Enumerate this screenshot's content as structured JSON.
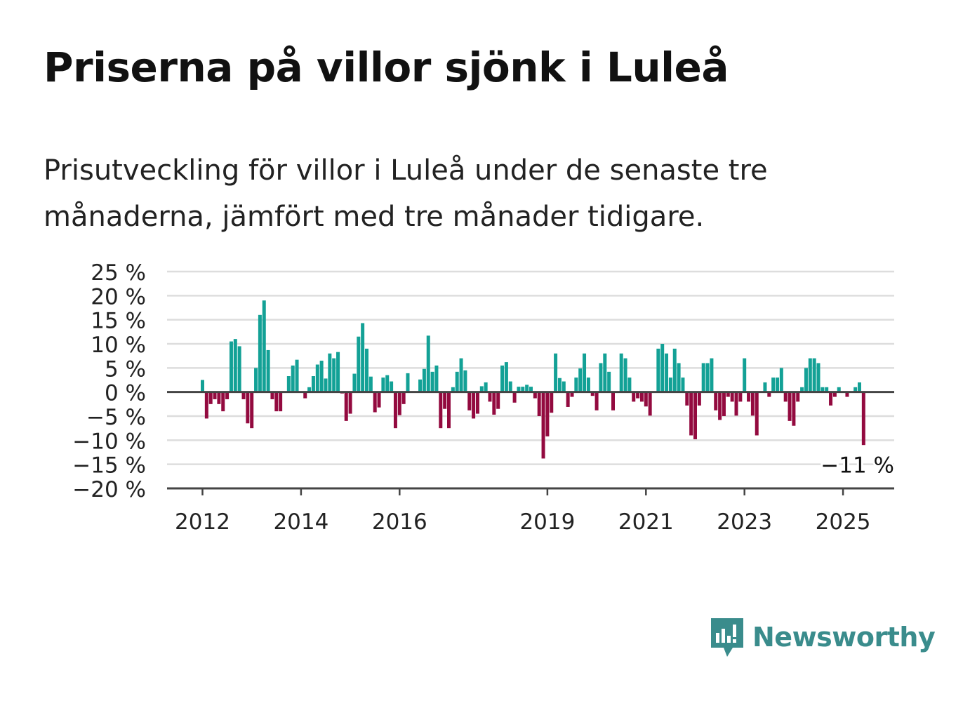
{
  "title": "Priserna på villor sjönk i Luleå",
  "subtitle": "Prisutveckling för villor i Luleå under de senaste tre månaderna, jämfört med tre månader tidigare.",
  "brand": "Newsworthy",
  "colors": {
    "positive": "#13a196",
    "negative": "#930a3f",
    "grid": "#dddddd",
    "zero_line": "#444444",
    "text": "#222222",
    "brand": "#3a8c8c"
  },
  "chart_data": {
    "type": "bar",
    "x_start": "2012-01",
    "x_end": "2025-05",
    "ylim": [
      -20,
      25
    ],
    "yticks": [
      25,
      20,
      15,
      10,
      5,
      0,
      -5,
      -10,
      -15,
      -20
    ],
    "ytick_labels": [
      "25 %",
      "20 %",
      "15 %",
      "10 %",
      "5 %",
      "0 %",
      "−5 %",
      "−10 %",
      "−15 %",
      "−20 %"
    ],
    "xticks": [
      "2012",
      "2014",
      "2016",
      "2019",
      "2021",
      "2023",
      "2025"
    ],
    "grid": true,
    "last_value_label": "−11 %",
    "values": [
      2.5,
      -5.5,
      -2.5,
      -1.5,
      -2.5,
      -4,
      -1.5,
      10.5,
      11,
      9.5,
      -1.5,
      -6.5,
      -7.5,
      5,
      16,
      19,
      8.7,
      -1.5,
      -4,
      -4,
      0,
      3.3,
      5.5,
      6.7,
      0,
      -1.3,
      1,
      3.3,
      5.7,
      6.5,
      2.8,
      8,
      7,
      8.3,
      -0.3,
      -6,
      -4.5,
      3.8,
      11.5,
      14.3,
      9,
      3.2,
      -4.2,
      -3.2,
      3,
      3.5,
      2.2,
      -7.5,
      -4.8,
      -2.5,
      3.9,
      0,
      0,
      2.6,
      4.8,
      11.7,
      4.2,
      5.5,
      -7.5,
      -3.5,
      -7.5,
      1,
      4.2,
      7,
      4.5,
      -3.8,
      -5.5,
      -4.5,
      1.2,
      2,
      -2,
      -4.7,
      -3.5,
      5.5,
      6.2,
      2.2,
      -2.2,
      1.1,
      1.1,
      1.5,
      1.1,
      -1.3,
      -5,
      -13.8,
      -9.2,
      -4.3,
      8,
      2.9,
      2.2,
      -3.1,
      -1,
      3,
      4.9,
      8,
      3,
      -0.8,
      -3.8,
      6,
      8,
      4.2,
      -3.8,
      0,
      8,
      7,
      3,
      -2,
      -1.3,
      -2,
      -3,
      -4.9,
      0,
      9,
      10,
      8,
      3,
      9,
      6,
      3,
      -2.8,
      -9,
      -9.8,
      -2.8,
      6,
      6,
      7,
      -3.8,
      -5.8,
      -5,
      -1,
      -2,
      -4.9,
      -2,
      7,
      -2,
      -4.9,
      -9,
      0,
      2,
      -1,
      3,
      3,
      5,
      -2,
      -6,
      -7,
      -2,
      1,
      5,
      7,
      7,
      6,
      1,
      1,
      -2.8,
      -1,
      1,
      0,
      -1,
      0,
      1,
      2,
      -11
    ]
  }
}
